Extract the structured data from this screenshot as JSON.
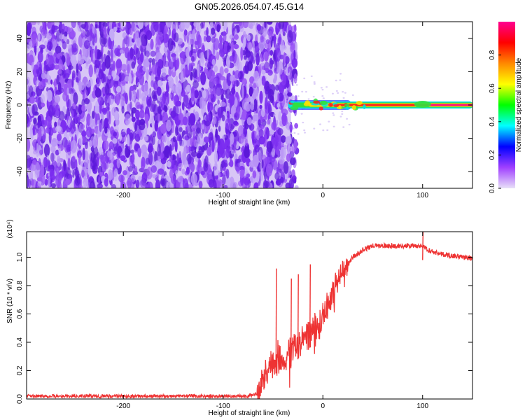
{
  "title": "GN05.2026.054.07.45.G14",
  "chart_data": [
    {
      "type": "heatmap",
      "xlabel": "Height of straight line (km)",
      "ylabel": "Frequency (Hz)",
      "xlim": [
        -297,
        150
      ],
      "ylim": [
        -50,
        50
      ],
      "xticks": [
        -200,
        -100,
        0,
        100
      ],
      "yticks": [
        -40,
        -20,
        0,
        20,
        40
      ],
      "noise_region_x": [
        -297,
        -32
      ],
      "signal_line_freq_hz": 0,
      "colorbar": {
        "label": "Normalized spectral amplitude",
        "range": [
          0.0,
          1.0
        ],
        "ticks": [
          0.0,
          0.2,
          0.4,
          0.6,
          0.8
        ],
        "colormap": [
          "#e8e0f8",
          "#a040ff",
          "#0000ff",
          "#00ffff",
          "#00ff00",
          "#ffff00",
          "#ff8800",
          "#ff0000",
          "#ff0090"
        ]
      }
    },
    {
      "type": "line",
      "xlabel": "Height of straight line (km)",
      "ylabel": "SNR (10 * v/v)",
      "yscale_note": "(x10⁴)",
      "xlim": [
        -297,
        150
      ],
      "ylim": [
        0.0,
        1.18
      ],
      "xticks": [
        -200,
        -100,
        0,
        100
      ],
      "yticks": [
        0.0,
        0.2,
        0.4,
        0.6,
        0.8,
        1.0
      ],
      "color": "#ee3333",
      "series": [
        {
          "name": "SNR",
          "x": [
            -297,
            -250,
            -200,
            -150,
            -100,
            -75,
            -66,
            -60,
            -55,
            -50,
            -45,
            -40,
            -35,
            -30,
            -25,
            -20,
            -15,
            -10,
            -5,
            0,
            5,
            10,
            15,
            20,
            25,
            30,
            40,
            50,
            60,
            70,
            80,
            90,
            95,
            100,
            105,
            110,
            120,
            130,
            140,
            150
          ],
          "y": [
            0.02,
            0.02,
            0.02,
            0.02,
            0.02,
            0.02,
            0.04,
            0.15,
            0.2,
            0.25,
            0.3,
            0.3,
            0.3,
            0.35,
            0.38,
            0.42,
            0.45,
            0.48,
            0.52,
            0.6,
            0.65,
            0.75,
            0.83,
            0.9,
            0.95,
            1.0,
            1.05,
            1.08,
            1.08,
            1.08,
            1.08,
            1.08,
            1.08,
            1.08,
            1.05,
            1.04,
            1.02,
            1.01,
            1.0,
            0.99
          ]
        }
      ],
      "spikes": [
        {
          "x": -47,
          "y": 0.92
        },
        {
          "x": -32,
          "y": 0.85
        },
        {
          "x": -25,
          "y": 0.88
        },
        {
          "x": -13,
          "y": 0.95
        },
        {
          "x": 100,
          "y": 1.18
        }
      ]
    }
  ]
}
